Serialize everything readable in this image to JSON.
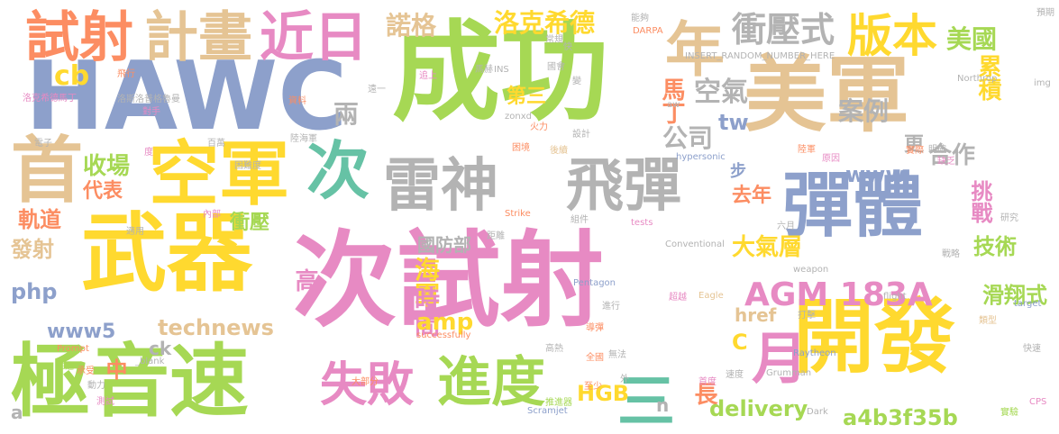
{
  "palette": {
    "green": "#a6d854",
    "yellow": "#ffd92f",
    "pink": "#e78ac3",
    "blue": "#8da0cb",
    "tan": "#e5c494",
    "gray": "#b3b3b3",
    "orange": "#fc8d62",
    "teal": "#66c2a5"
  },
  "words": [
    {
      "t": "成功",
      "c": "green"
    },
    {
      "t": "次試射",
      "c": "pink"
    },
    {
      "t": "HAWC",
      "c": "blue"
    },
    {
      "t": "美軍",
      "c": "tan"
    },
    {
      "t": "武器",
      "c": "yellow"
    },
    {
      "t": "開發",
      "c": "yellow"
    },
    {
      "t": "雷神",
      "c": "gray"
    },
    {
      "t": "飛彈",
      "c": "gray"
    },
    {
      "t": "彈體",
      "c": "blue"
    },
    {
      "t": "極音速",
      "c": "green"
    },
    {
      "t": "空軍",
      "c": "yellow"
    },
    {
      "t": "首",
      "c": "tan"
    },
    {
      "t": "試射",
      "c": "orange"
    },
    {
      "t": "計畫",
      "c": "tan"
    },
    {
      "t": "近日",
      "c": "pink"
    },
    {
      "t": "年",
      "c": "tan"
    },
    {
      "t": "版本",
      "c": "yellow"
    },
    {
      "t": "次",
      "c": "teal"
    },
    {
      "t": "衝壓式",
      "c": "gray"
    },
    {
      "t": "失敗",
      "c": "pink"
    },
    {
      "t": "進度",
      "c": "green"
    },
    {
      "t": "AGM 183A",
      "c": "pink"
    },
    {
      "t": "月",
      "c": "pink"
    },
    {
      "t": "三",
      "c": "teal"
    },
    {
      "t": "美國",
      "c": "green"
    },
    {
      "t": "諾格",
      "c": "tan"
    },
    {
      "t": "洛克希德",
      "c": "yellow"
    },
    {
      "t": "空氣",
      "c": "gray"
    },
    {
      "t": "累積",
      "c": "yellow"
    },
    {
      "t": "案例",
      "c": "gray"
    },
    {
      "t": "cb",
      "c": "yellow"
    },
    {
      "t": "收場",
      "c": "green"
    },
    {
      "t": "代表",
      "c": "orange"
    },
    {
      "t": "公司",
      "c": "gray"
    },
    {
      "t": "tw",
      "c": "blue"
    },
    {
      "t": "www",
      "c": "blue"
    },
    {
      "t": "合作",
      "c": "gray"
    },
    {
      "t": "挑戰",
      "c": "pink"
    },
    {
      "t": "技術",
      "c": "green"
    },
    {
      "t": "滑翔式",
      "c": "green"
    },
    {
      "t": "去年",
      "c": "orange"
    },
    {
      "t": "大氣層",
      "c": "yellow"
    },
    {
      "t": "馬丁",
      "c": "orange"
    },
    {
      "t": "第三",
      "c": "yellow"
    },
    {
      "t": "兩",
      "c": "gray"
    },
    {
      "t": "更",
      "c": "gray"
    },
    {
      "t": "步",
      "c": "blue"
    },
    {
      "t": "國防部",
      "c": "gray"
    },
    {
      "t": "海軍",
      "c": "yellow"
    },
    {
      "t": "時間",
      "c": "pink"
    },
    {
      "t": "amp",
      "c": "yellow"
    },
    {
      "t": "HGB",
      "c": "yellow"
    },
    {
      "t": "長",
      "c": "orange"
    },
    {
      "t": "delivery",
      "c": "green"
    },
    {
      "t": "a4b3f35b",
      "c": "green"
    },
    {
      "t": "technews",
      "c": "tan"
    },
    {
      "t": "www5",
      "c": "blue"
    },
    {
      "t": "php",
      "c": "blue"
    },
    {
      "t": "發射",
      "c": "tan"
    },
    {
      "t": "軌道",
      "c": "orange"
    },
    {
      "t": "衝壓",
      "c": "green"
    },
    {
      "t": "高",
      "c": "pink"
    },
    {
      "t": "href",
      "c": "tan"
    },
    {
      "t": "C",
      "c": "yellow"
    },
    {
      "t": "n",
      "c": "gray"
    },
    {
      "t": "ck",
      "c": "gray"
    },
    {
      "t": "中",
      "c": "orange"
    },
    {
      "t": "a",
      "c": "gray"
    },
    {
      "t": "INSERT_RANDOM_NUMBER_HERE",
      "c": "gray"
    },
    {
      "t": "Northrop",
      "c": "gray"
    },
    {
      "t": "hypersonic",
      "c": "blue"
    },
    {
      "t": "successfully",
      "c": "orange"
    },
    {
      "t": "Pentagon",
      "c": "blue"
    },
    {
      "t": "weapon",
      "c": "gray"
    },
    {
      "t": "flight",
      "c": "gray"
    },
    {
      "t": "Conventional",
      "c": "gray"
    },
    {
      "t": "Grumman",
      "c": "gray"
    },
    {
      "t": "Raytheon",
      "c": "blue"
    },
    {
      "t": "Scramjet",
      "c": "blue"
    },
    {
      "t": "Eagle",
      "c": "tan"
    },
    {
      "t": "target",
      "c": "blue"
    },
    {
      "t": "Strike",
      "c": "orange"
    },
    {
      "t": "tests",
      "c": "pink"
    },
    {
      "t": "Prompt",
      "c": "orange"
    },
    {
      "t": "DARPA",
      "c": "orange"
    },
    {
      "t": "zonxd",
      "c": "gray"
    },
    {
      "t": "INS",
      "c": "gray"
    },
    {
      "t": "Dark",
      "c": "gray"
    },
    {
      "t": "CPS",
      "c": "pink"
    },
    {
      "t": "img",
      "c": "gray"
    },
    {
      "t": "aw",
      "c": "gray"
    },
    {
      "t": "_blank",
      "c": "gray"
    },
    {
      "t": "馬赫",
      "c": "gray"
    },
    {
      "t": "速度",
      "c": "gray"
    },
    {
      "t": "距離",
      "c": "gray"
    },
    {
      "t": "火力",
      "c": "orange"
    },
    {
      "t": "動力",
      "c": "gray"
    },
    {
      "t": "測試",
      "c": "pink"
    },
    {
      "t": "大部分",
      "c": "orange"
    },
    {
      "t": "實驗",
      "c": "green"
    },
    {
      "t": "預期",
      "c": "gray"
    },
    {
      "t": "快速",
      "c": "gray"
    },
    {
      "t": "超越",
      "c": "pink"
    },
    {
      "t": "研究",
      "c": "gray"
    },
    {
      "t": "六月",
      "c": "gray"
    },
    {
      "t": "組件",
      "c": "gray"
    },
    {
      "t": "承受",
      "c": "orange"
    },
    {
      "t": "困難度",
      "c": "gray"
    },
    {
      "t": "資料",
      "c": "orange"
    },
    {
      "t": "戰略",
      "c": "gray"
    },
    {
      "t": "推進器",
      "c": "green"
    },
    {
      "t": "至少",
      "c": "orange"
    },
    {
      "t": "外",
      "c": "gray"
    },
    {
      "t": "全國",
      "c": "orange"
    },
    {
      "t": "度",
      "c": "pink"
    },
    {
      "t": "百萬",
      "c": "gray"
    },
    {
      "t": "陸海軍",
      "c": "gray"
    },
    {
      "t": "內部",
      "c": "pink"
    },
    {
      "t": "適用",
      "c": "gray"
    },
    {
      "t": "飛行",
      "c": "orange"
    },
    {
      "t": "追上",
      "c": "pink"
    },
    {
      "t": "能夠",
      "c": "gray"
    },
    {
      "t": "設計",
      "c": "gray"
    },
    {
      "t": "電子",
      "c": "gray"
    },
    {
      "t": "首度",
      "c": "pink"
    },
    {
      "t": "陸軍",
      "c": "orange"
    },
    {
      "t": "洛斯洛普格魯曼",
      "c": "gray"
    },
    {
      "t": "洛克希德馬丁",
      "c": "pink"
    },
    {
      "t": "困境",
      "c": "orange"
    },
    {
      "t": "快",
      "c": "gray"
    },
    {
      "t": "原因",
      "c": "pink"
    },
    {
      "t": "後續",
      "c": "tan"
    },
    {
      "t": "類型",
      "c": "tan"
    },
    {
      "t": "實際",
      "c": "orange"
    },
    {
      "t": "明確",
      "c": "gray"
    },
    {
      "t": "常規",
      "c": "gray"
    },
    {
      "t": "遠一",
      "c": "gray"
    },
    {
      "t": "缺乏",
      "c": "pink"
    },
    {
      "t": "推進",
      "c": "green"
    },
    {
      "t": "高熱",
      "c": "gray"
    },
    {
      "t": "打擊",
      "c": "gray"
    },
    {
      "t": "對手",
      "c": "pink"
    },
    {
      "t": "變",
      "c": "gray"
    },
    {
      "t": "國會",
      "c": "gray"
    },
    {
      "t": "進行",
      "c": "gray"
    },
    {
      "t": "導彈",
      "c": "orange"
    },
    {
      "t": "無法",
      "c": "gray"
    },
    {
      "t": "機",
      "c": "gray"
    },
    {
      "t": "連",
      "c": "gray"
    },
    {
      "t": "提供",
      "c": "gray"
    },
    {
      "t": "整",
      "c": "gray"
    },
    {
      "t": "熱",
      "c": "gray"
    }
  ]
}
